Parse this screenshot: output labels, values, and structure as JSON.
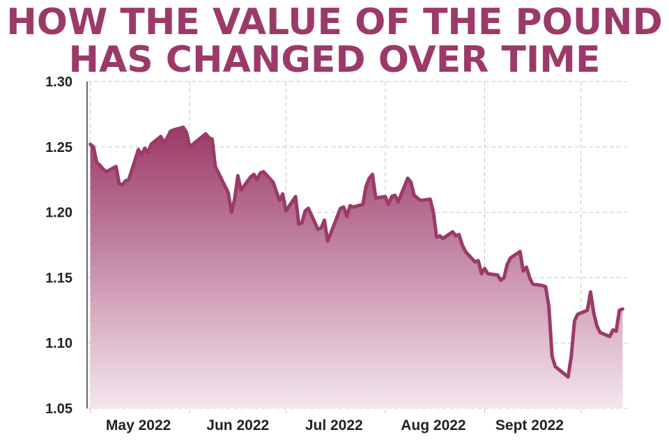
{
  "title_line1": "HOW THE VALUE OF THE POUND",
  "title_line2": "HAS CHANGED OVER TIME",
  "colors": {
    "line": "#9b3a68",
    "fill_top": "#9b3a68",
    "fill_bottom": "#f4e6ee",
    "title": "#9b3a68"
  },
  "chart_data": {
    "type": "area",
    "title": "HOW THE VALUE OF THE POUND HAS CHANGED OVER TIME",
    "xlabel": "",
    "ylabel": "",
    "ylim": [
      1.05,
      1.3
    ],
    "yticks": [
      "1.30",
      "1.25",
      "1.20",
      "1.15",
      "1.10",
      "1.05"
    ],
    "xticks": [
      "May 2022",
      "Jun 2022",
      "Jul 2022",
      "Aug 2022",
      "Sept 2022"
    ],
    "grid": true,
    "series": [
      {
        "x": [
          "2022-05-01",
          "2022-05-02",
          "2022-05-03",
          "2022-05-04",
          "2022-05-05",
          "2022-05-06",
          "2022-05-09",
          "2022-05-10",
          "2022-05-11",
          "2022-05-12",
          "2022-05-13",
          "2022-05-16",
          "2022-05-17",
          "2022-05-18",
          "2022-05-19",
          "2022-05-20",
          "2022-05-23",
          "2022-05-24",
          "2022-05-25",
          "2022-05-26",
          "2022-05-27",
          "2022-05-30",
          "2022-05-31",
          "2022-06-01",
          "2022-06-06",
          "2022-06-07",
          "2022-06-08",
          "2022-06-09",
          "2022-06-10",
          "2022-06-13",
          "2022-06-14",
          "2022-06-15",
          "2022-06-16",
          "2022-06-17",
          "2022-06-20",
          "2022-06-21",
          "2022-06-22",
          "2022-06-23",
          "2022-06-24",
          "2022-06-27",
          "2022-06-28",
          "2022-06-29",
          "2022-06-30",
          "2022-07-01",
          "2022-07-04",
          "2022-07-05",
          "2022-07-06",
          "2022-07-07",
          "2022-07-08",
          "2022-07-11",
          "2022-07-12",
          "2022-07-13",
          "2022-07-14",
          "2022-07-15",
          "2022-07-18",
          "2022-07-19",
          "2022-07-20",
          "2022-07-21",
          "2022-07-22",
          "2022-07-25",
          "2022-07-26",
          "2022-07-27",
          "2022-07-28",
          "2022-07-29",
          "2022-08-01",
          "2022-08-02",
          "2022-08-03",
          "2022-08-04",
          "2022-08-05",
          "2022-08-08",
          "2022-08-09",
          "2022-08-10",
          "2022-08-11",
          "2022-08-12",
          "2022-08-15",
          "2022-08-16",
          "2022-08-17",
          "2022-08-18",
          "2022-08-19",
          "2022-08-22",
          "2022-08-23",
          "2022-08-24",
          "2022-08-25",
          "2022-08-26",
          "2022-08-29",
          "2022-08-30",
          "2022-08-31",
          "2022-09-01",
          "2022-09-02",
          "2022-09-05",
          "2022-09-06",
          "2022-09-07",
          "2022-09-08",
          "2022-09-09",
          "2022-09-12",
          "2022-09-13",
          "2022-09-14",
          "2022-09-15",
          "2022-09-16",
          "2022-09-19",
          "2022-09-20",
          "2022-09-21",
          "2022-09-22",
          "2022-09-23",
          "2022-09-26",
          "2022-09-27",
          "2022-09-28",
          "2022-09-29",
          "2022-09-30",
          "2022-10-03",
          "2022-10-04",
          "2022-10-05",
          "2022-10-06",
          "2022-10-07",
          "2022-10-10",
          "2022-10-11",
          "2022-10-12",
          "2022-10-13",
          "2022-10-14"
        ],
        "values": [
          1.252,
          1.25,
          1.238,
          1.236,
          1.233,
          1.231,
          1.235,
          1.222,
          1.221,
          1.224,
          1.225,
          1.248,
          1.244,
          1.249,
          1.246,
          1.252,
          1.258,
          1.253,
          1.257,
          1.262,
          1.263,
          1.265,
          1.261,
          1.25,
          1.26,
          1.257,
          1.256,
          1.235,
          1.23,
          1.215,
          1.2,
          1.21,
          1.228,
          1.217,
          1.227,
          1.229,
          1.225,
          1.23,
          1.231,
          1.223,
          1.216,
          1.209,
          1.214,
          1.201,
          1.212,
          1.191,
          1.192,
          1.201,
          1.203,
          1.187,
          1.188,
          1.194,
          1.178,
          1.184,
          1.203,
          1.204,
          1.197,
          1.205,
          1.204,
          1.206,
          1.22,
          1.226,
          1.229,
          1.211,
          1.212,
          1.206,
          1.212,
          1.213,
          1.208,
          1.226,
          1.223,
          1.213,
          1.211,
          1.209,
          1.21,
          1.2,
          1.181,
          1.182,
          1.18,
          1.185,
          1.182,
          1.183,
          1.175,
          1.17,
          1.162,
          1.163,
          1.153,
          1.157,
          1.153,
          1.152,
          1.148,
          1.15,
          1.16,
          1.165,
          1.17,
          1.155,
          1.158,
          1.15,
          1.145,
          1.144,
          1.143,
          1.128,
          1.09,
          1.082,
          1.076,
          1.074,
          1.09,
          1.117,
          1.122,
          1.125,
          1.139,
          1.123,
          1.113,
          1.108,
          1.105,
          1.11,
          1.109,
          1.125,
          1.126
        ]
      }
    ]
  }
}
